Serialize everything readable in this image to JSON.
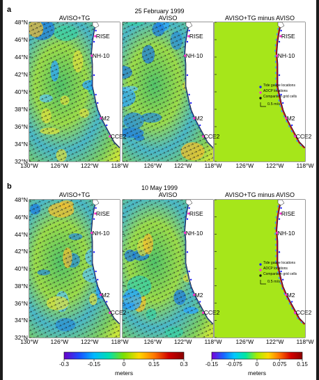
{
  "panel_a": {
    "letter": "a",
    "date": "25 February 1999",
    "columns": [
      "AVISO+TG",
      "AVISO",
      "AVISO+TG minus AVISO"
    ]
  },
  "panel_b": {
    "letter": "b",
    "date": "10 May 1999",
    "columns": [
      "AVISO+TG",
      "AVISO",
      "AVISO+TG minus AVISO"
    ]
  },
  "lat_labels": [
    "48°N",
    "46°N",
    "44°N",
    "42°N",
    "40°N",
    "38°N",
    "36°N",
    "34°N",
    "32°N"
  ],
  "lon_labels_full": [
    "130°W",
    "126°W",
    "122°W",
    "118°W"
  ],
  "lon_labels_short": [
    "126°W",
    "122°W",
    "118°W"
  ],
  "stations": [
    "RISE",
    "NH-10",
    "M2",
    "CCE2"
  ],
  "legend": {
    "items": [
      "Tide gauge locations",
      "ADCP locations",
      "Comparison grid cells"
    ],
    "scale": "0.5 m/s",
    "colors": [
      "#2020ff",
      "#ff33cc",
      "#111111"
    ]
  },
  "colorbar_left": {
    "ticks": [
      "-0.3",
      "-0.15",
      "0",
      "0.15",
      "0.3"
    ],
    "unit": "meters"
  },
  "colorbar_right": {
    "ticks": [
      "-0.15",
      "-0.075",
      "0",
      "0.075",
      "0.15"
    ],
    "unit": "meters"
  }
}
